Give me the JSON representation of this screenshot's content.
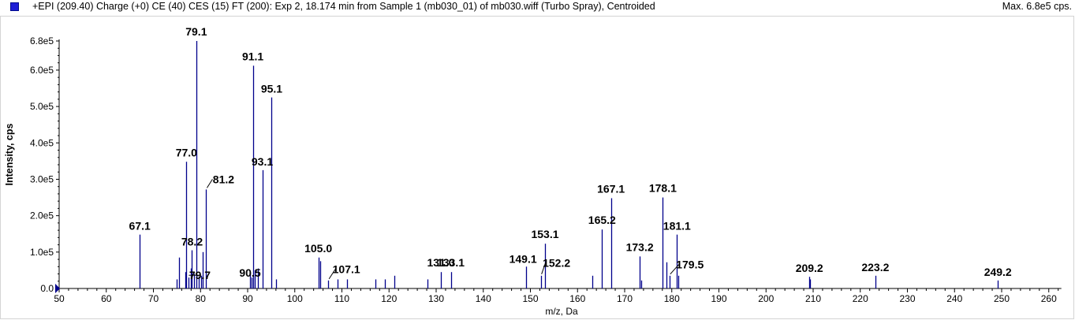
{
  "header": {
    "title": "+EPI (209.40) Charge (+0) CE (40) CES (15) FT (200): Exp 2, 18.174 min from Sample 1 (mb030_01) of mb030.wiff (Turbo Spray), Centroided",
    "max_label": "Max. 6.8e5 cps."
  },
  "colors": {
    "series": "#00008b",
    "legend_swatch": "#1f1fd6"
  },
  "chart_data": {
    "type": "bar",
    "title": "+EPI (209.40) Charge (+0) CE (40) CES (15) FT (200): Exp 2, 18.174 min from Sample 1 (mb030_01) of mb030.wiff (Turbo Spray), Centroided",
    "xlabel": "m/z, Da",
    "ylabel": "Intensity, cps",
    "xlim": [
      50,
      262
    ],
    "ylim": [
      0,
      680000
    ],
    "grid": false,
    "x_ticks": [
      50,
      60,
      70,
      80,
      90,
      100,
      110,
      120,
      130,
      140,
      150,
      160,
      170,
      180,
      190,
      200,
      210,
      220,
      230,
      240,
      250,
      260
    ],
    "y_ticks": [
      {
        "value": 0,
        "label": "0.0"
      },
      {
        "value": 100000,
        "label": "1.0e5"
      },
      {
        "value": 200000,
        "label": "2.0e5"
      },
      {
        "value": 300000,
        "label": "3.0e5"
      },
      {
        "value": 400000,
        "label": "4.0e5"
      },
      {
        "value": 500000,
        "label": "5.0e5"
      },
      {
        "value": 600000,
        "label": "6.0e5"
      },
      {
        "value": 680000,
        "label": "6.8e5"
      }
    ],
    "peaks": [
      {
        "x": 67.1,
        "y": 148000
      },
      {
        "x": 75.0,
        "y": 25000
      },
      {
        "x": 75.4,
        "y": 85000
      },
      {
        "x": 76.7,
        "y": 45000
      },
      {
        "x": 77.0,
        "y": 348000
      },
      {
        "x": 77.5,
        "y": 30000
      },
      {
        "x": 77.9,
        "y": 55000
      },
      {
        "x": 78.2,
        "y": 105000
      },
      {
        "x": 78.6,
        "y": 40000
      },
      {
        "x": 79.1,
        "y": 680000
      },
      {
        "x": 79.7,
        "y": 32000
      },
      {
        "x": 80.1,
        "y": 35000
      },
      {
        "x": 80.5,
        "y": 100000
      },
      {
        "x": 81.2,
        "y": 272000
      },
      {
        "x": 90.5,
        "y": 45000
      },
      {
        "x": 90.8,
        "y": 30000
      },
      {
        "x": 91.1,
        "y": 612000
      },
      {
        "x": 91.5,
        "y": 50000
      },
      {
        "x": 92.1,
        "y": 55000
      },
      {
        "x": 93.1,
        "y": 325000
      },
      {
        "x": 95.1,
        "y": 525000
      },
      {
        "x": 96.1,
        "y": 25000
      },
      {
        "x": 105.0,
        "y": 85000
      },
      {
        "x": 105.4,
        "y": 75000
      },
      {
        "x": 107.1,
        "y": 22000
      },
      {
        "x": 109.1,
        "y": 25000
      },
      {
        "x": 111.1,
        "y": 25000
      },
      {
        "x": 117.1,
        "y": 25000
      },
      {
        "x": 119.1,
        "y": 25000
      },
      {
        "x": 121.1,
        "y": 35000
      },
      {
        "x": 128.1,
        "y": 25000
      },
      {
        "x": 131.0,
        "y": 45000
      },
      {
        "x": 133.1,
        "y": 45000
      },
      {
        "x": 149.1,
        "y": 60000
      },
      {
        "x": 152.2,
        "y": 35000
      },
      {
        "x": 153.1,
        "y": 123000
      },
      {
        "x": 163.1,
        "y": 35000
      },
      {
        "x": 165.2,
        "y": 162000
      },
      {
        "x": 167.1,
        "y": 248000
      },
      {
        "x": 173.2,
        "y": 88000
      },
      {
        "x": 173.5,
        "y": 22000
      },
      {
        "x": 178.1,
        "y": 250000
      },
      {
        "x": 178.9,
        "y": 72000
      },
      {
        "x": 179.5,
        "y": 35000
      },
      {
        "x": 181.1,
        "y": 148000
      },
      {
        "x": 181.3,
        "y": 35000
      },
      {
        "x": 209.2,
        "y": 32000
      },
      {
        "x": 209.4,
        "y": 25000
      },
      {
        "x": 223.2,
        "y": 35000
      },
      {
        "x": 249.2,
        "y": 22000
      }
    ],
    "annotations": [
      {
        "label": "67.1",
        "x": 67.1,
        "y": 148000
      },
      {
        "label": "77.0",
        "x": 77.0,
        "y": 348000
      },
      {
        "label": "78.2",
        "x": 78.2,
        "y": 105000
      },
      {
        "label": "79.1",
        "x": 79.1,
        "y": 680000
      },
      {
        "label": "79.7",
        "x": 79.7,
        "y": 32000
      },
      {
        "label": "81.2",
        "x": 81.2,
        "y": 272000
      },
      {
        "label": "90.5",
        "x": 90.5,
        "y": 45000
      },
      {
        "label": "91.1",
        "x": 91.1,
        "y": 612000
      },
      {
        "label": "93.1",
        "x": 93.1,
        "y": 325000
      },
      {
        "label": "95.1",
        "x": 95.1,
        "y": 525000
      },
      {
        "label": "105.0",
        "x": 105.0,
        "y": 85000
      },
      {
        "label": "107.1",
        "x": 107.1,
        "y": 22000
      },
      {
        "label": "131.0",
        "x": 131.0,
        "y": 45000
      },
      {
        "label": "133.1",
        "x": 133.1,
        "y": 45000
      },
      {
        "label": "149.1",
        "x": 149.1,
        "y": 60000
      },
      {
        "label": "152.2",
        "x": 152.2,
        "y": 35000
      },
      {
        "label": "153.1",
        "x": 153.1,
        "y": 123000
      },
      {
        "label": "165.2",
        "x": 165.2,
        "y": 162000
      },
      {
        "label": "167.1",
        "x": 167.1,
        "y": 248000
      },
      {
        "label": "173.2",
        "x": 173.2,
        "y": 88000
      },
      {
        "label": "178.1",
        "x": 178.1,
        "y": 250000
      },
      {
        "label": "179.5",
        "x": 179.5,
        "y": 35000
      },
      {
        "label": "181.1",
        "x": 181.1,
        "y": 148000
      },
      {
        "label": "209.2",
        "x": 209.2,
        "y": 32000
      },
      {
        "label": "223.2",
        "x": 223.2,
        "y": 35000
      },
      {
        "label": "249.2",
        "x": 249.2,
        "y": 22000
      }
    ]
  }
}
